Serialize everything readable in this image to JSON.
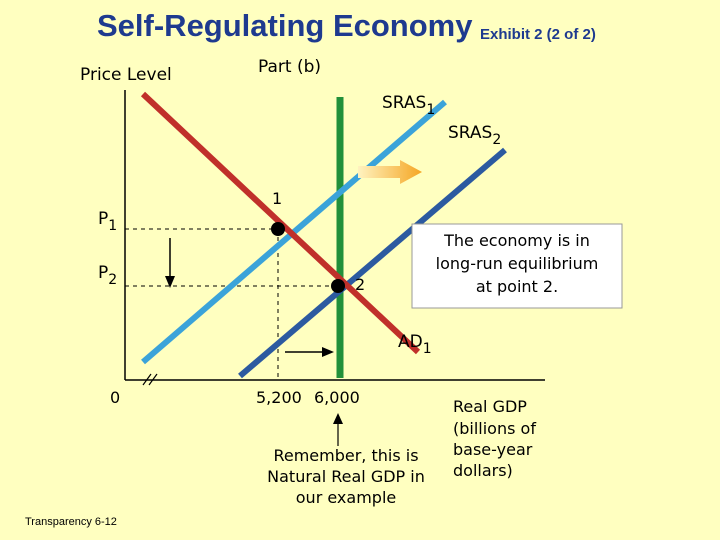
{
  "title": "Self-Regulating Economy",
  "subtitle": "Exhibit 2 (2 of 2)",
  "part_label": "Part (b)",
  "footer": "Transparency 6-12",
  "axes": {
    "y_label": "Price Level",
    "x_label_lines": [
      "Real GDP",
      "(billions of",
      "base-year",
      "dollars)"
    ],
    "origin": "0"
  },
  "price_levels": [
    {
      "label": "P",
      "sub": "1"
    },
    {
      "label": "P",
      "sub": "2"
    }
  ],
  "gdp_ticks": [
    "5,200",
    "6,000"
  ],
  "curves": {
    "sras1": {
      "label": "SRAS",
      "sub": "1",
      "color": "#3BA3D9"
    },
    "sras2": {
      "label": "SRAS",
      "sub": "2",
      "color": "#2C5AA0"
    },
    "ad1": {
      "label": "AD",
      "sub": "1",
      "color": "#C0302A"
    },
    "lras": {
      "color": "#22903A"
    }
  },
  "points": [
    "1",
    "2"
  ],
  "callout_lines": [
    "The economy is in",
    "long-run equilibrium",
    "at point 2."
  ],
  "note_lines": [
    "Remember, this is",
    "Natural Real GDP in",
    "our example"
  ],
  "colors": {
    "background": "#FFFFC0",
    "title": "#1E3A8F",
    "shift_arrow": "#F5A623",
    "callout_bg": "#FFFFFF"
  }
}
